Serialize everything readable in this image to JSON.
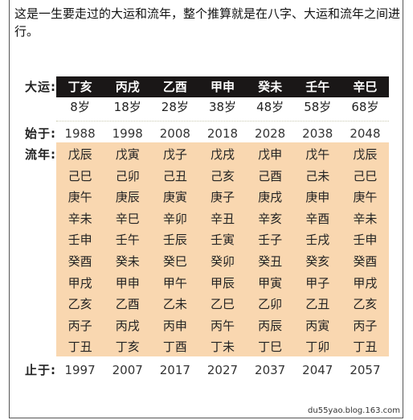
{
  "intro_text": "这是一生要走过的大运和流年，整个推算就是在八字、大运和流年之间进行。",
  "labels": {
    "dayun": "大运:",
    "start": "始于:",
    "liunian": "流年:",
    "end": "止于:"
  },
  "dayun": [
    "丁亥",
    "丙戌",
    "乙酉",
    "甲申",
    "癸未",
    "壬午",
    "辛巳"
  ],
  "ages": [
    "8岁",
    "18岁",
    "28岁",
    "38岁",
    "48岁",
    "58岁",
    "68岁"
  ],
  "start_years": [
    "1988",
    "1998",
    "2008",
    "2018",
    "2028",
    "2038",
    "2048"
  ],
  "liunian": [
    [
      "戊辰",
      "戊寅",
      "戊子",
      "戊戌",
      "戊申",
      "戊午",
      "戊辰"
    ],
    [
      "己巳",
      "己卯",
      "己丑",
      "己亥",
      "己酉",
      "己未",
      "己巳"
    ],
    [
      "庚午",
      "庚辰",
      "庚寅",
      "庚子",
      "庚戌",
      "庚申",
      "庚午"
    ],
    [
      "辛未",
      "辛巳",
      "辛卯",
      "辛丑",
      "辛亥",
      "辛酉",
      "辛未"
    ],
    [
      "壬申",
      "壬午",
      "壬辰",
      "壬寅",
      "壬子",
      "壬戌",
      "壬申"
    ],
    [
      "癸酉",
      "癸未",
      "癸巳",
      "癸卯",
      "癸丑",
      "癸亥",
      "癸酉"
    ],
    [
      "甲戌",
      "甲申",
      "甲午",
      "甲辰",
      "甲寅",
      "甲子",
      "甲戌"
    ],
    [
      "乙亥",
      "乙酉",
      "乙未",
      "乙巳",
      "乙卯",
      "乙丑",
      "乙亥"
    ],
    [
      "丙子",
      "丙戌",
      "丙申",
      "丙午",
      "丙辰",
      "丙寅",
      "丙子"
    ],
    [
      "丁丑",
      "丁亥",
      "丁酉",
      "丁未",
      "丁巳",
      "丁卯",
      "丁丑"
    ]
  ],
  "end_years": [
    "1997",
    "2007",
    "2017",
    "2027",
    "2037",
    "2047",
    "2057"
  ],
  "watermark": "du55yao.blog.163.com",
  "colors": {
    "header_bar": "#1a1717",
    "liunian_bg": "#f9d7b0"
  }
}
